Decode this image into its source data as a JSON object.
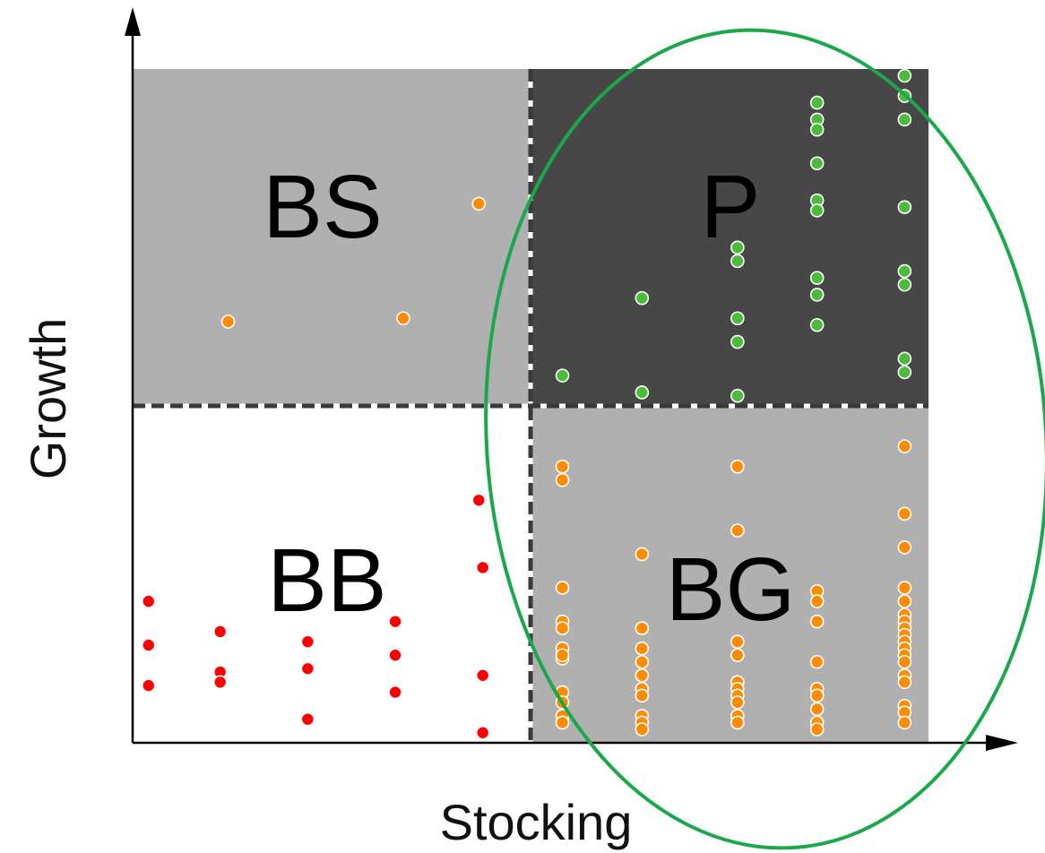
{
  "chart_data": {
    "type": "scatter",
    "xlabel": "Stocking",
    "ylabel": "Growth",
    "xlim": [
      0,
      100
    ],
    "ylim": [
      0,
      100
    ],
    "x_split": 50,
    "y_split": 50,
    "quadrants": [
      {
        "label": "BS",
        "position": "top-left",
        "color": "#b0b0b0"
      },
      {
        "label": "P",
        "position": "top-right",
        "color": "#474747"
      },
      {
        "label": "BB",
        "position": "bottom-left",
        "color": "#ffffff"
      },
      {
        "label": "BG",
        "position": "bottom-right",
        "color": "#b0b0b0"
      }
    ],
    "highlight": {
      "shape": "ellipse",
      "color": "#1aa84a",
      "encloses": "Stocking above split"
    },
    "series": [
      {
        "color": "#ff0000",
        "points": [
          [
            2,
            21
          ],
          [
            2,
            14.5
          ],
          [
            2,
            8.5
          ],
          [
            11,
            16.5
          ],
          [
            11,
            10.5
          ],
          [
            11,
            9
          ],
          [
            22,
            15
          ],
          [
            22,
            11
          ],
          [
            22,
            3.5
          ],
          [
            33,
            18
          ],
          [
            33,
            13
          ],
          [
            33,
            7.5
          ],
          [
            43.5,
            36
          ],
          [
            44,
            26
          ],
          [
            44,
            10
          ],
          [
            44,
            1.5
          ]
        ]
      },
      {
        "color": "#ff8c00",
        "points": [
          [
            12,
            62.5
          ],
          [
            34,
            63
          ],
          [
            43.5,
            80
          ],
          [
            54,
            41
          ],
          [
            54,
            39
          ],
          [
            54,
            23
          ],
          [
            54,
            18
          ],
          [
            54,
            17
          ],
          [
            54,
            14
          ],
          [
            54,
            12.5
          ],
          [
            54,
            13
          ],
          [
            54,
            7.5
          ],
          [
            54,
            6
          ],
          [
            54,
            4
          ],
          [
            54,
            3
          ],
          [
            64,
            28
          ],
          [
            64,
            17
          ],
          [
            64,
            14
          ],
          [
            64,
            12
          ],
          [
            64,
            10
          ],
          [
            64,
            8
          ],
          [
            64,
            7
          ],
          [
            64,
            4
          ],
          [
            64,
            3
          ],
          [
            64,
            2
          ],
          [
            76,
            41
          ],
          [
            76,
            31.5
          ],
          [
            76,
            15
          ],
          [
            76,
            13
          ],
          [
            76,
            9
          ],
          [
            76,
            8
          ],
          [
            76,
            7
          ],
          [
            76,
            6
          ],
          [
            76,
            4
          ],
          [
            76,
            3
          ],
          [
            86,
            22.5
          ],
          [
            86,
            21
          ],
          [
            86,
            18
          ],
          [
            86,
            12
          ],
          [
            86,
            8
          ],
          [
            86,
            7
          ],
          [
            86,
            5
          ],
          [
            86,
            3
          ],
          [
            86,
            2
          ],
          [
            97,
            44
          ],
          [
            97,
            34
          ],
          [
            97,
            29
          ],
          [
            97,
            23
          ],
          [
            97,
            21
          ],
          [
            97,
            19
          ],
          [
            97,
            18
          ],
          [
            97,
            17
          ],
          [
            97,
            16
          ],
          [
            97,
            15
          ],
          [
            97,
            14
          ],
          [
            97,
            13
          ],
          [
            97,
            12
          ],
          [
            97,
            10
          ],
          [
            97,
            9
          ],
          [
            97,
            5.5
          ],
          [
            97,
            4.5
          ],
          [
            97,
            3
          ]
        ]
      },
      {
        "color": "#4cbb3c",
        "points": [
          [
            54,
            54.5
          ],
          [
            64,
            66
          ],
          [
            64,
            52
          ],
          [
            76,
            73.5
          ],
          [
            76,
            71.5
          ],
          [
            76,
            63
          ],
          [
            76,
            59.5
          ],
          [
            76,
            51.5
          ],
          [
            86,
            95
          ],
          [
            86,
            92.5
          ],
          [
            86,
            91
          ],
          [
            86,
            86
          ],
          [
            86,
            80.5
          ],
          [
            86,
            79
          ],
          [
            86,
            69
          ],
          [
            86,
            66.5
          ],
          [
            86,
            62
          ],
          [
            97,
            99
          ],
          [
            97,
            96
          ],
          [
            97,
            92.5
          ],
          [
            97,
            79.5
          ],
          [
            97,
            70
          ],
          [
            97,
            68
          ],
          [
            97,
            57
          ],
          [
            97,
            55
          ]
        ]
      }
    ]
  }
}
